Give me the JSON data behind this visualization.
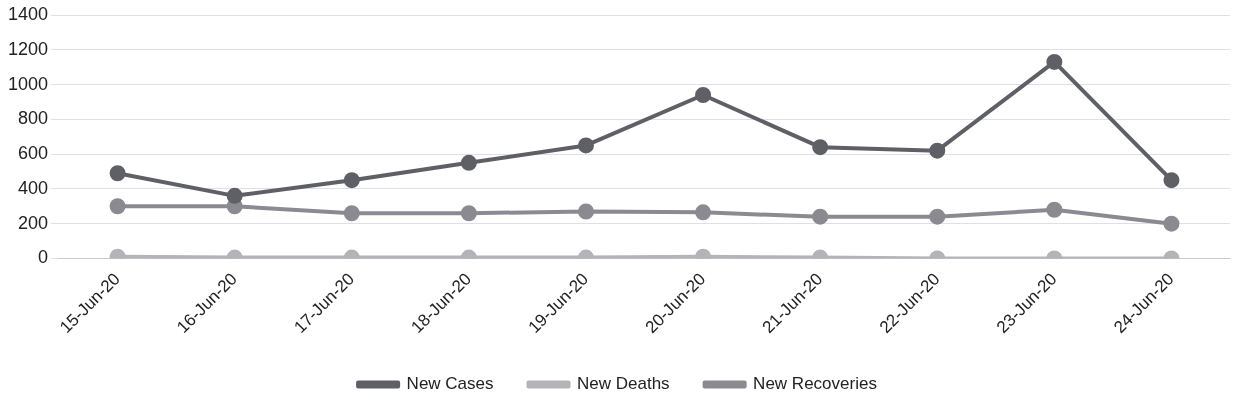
{
  "chart_data": {
    "type": "line",
    "categories": [
      "15-Jun-20",
      "16-Jun-20",
      "17-Jun-20",
      "18-Jun-20",
      "19-Jun-20",
      "20-Jun-20",
      "21-Jun-20",
      "22-Jun-20",
      "23-Jun-20",
      "24-Jun-20"
    ],
    "series": [
      {
        "name": "New Cases",
        "color": "#5f5f66",
        "values": [
          490,
          360,
          450,
          550,
          650,
          940,
          640,
          620,
          1130,
          450
        ]
      },
      {
        "name": "New Deaths",
        "color": "#b4b4b8",
        "values": [
          10,
          5,
          5,
          5,
          5,
          10,
          5,
          0,
          0,
          0
        ]
      },
      {
        "name": "New Recoveries",
        "color": "#8a8a90",
        "values": [
          300,
          300,
          260,
          260,
          270,
          265,
          240,
          240,
          280,
          200
        ]
      }
    ],
    "ylim": [
      0,
      1400
    ],
    "yticks": [
      0,
      200,
      400,
      600,
      800,
      1000,
      1200,
      1400
    ],
    "grid": "y",
    "legend": "bottom",
    "marker": "circle",
    "line_style": "solid"
  }
}
